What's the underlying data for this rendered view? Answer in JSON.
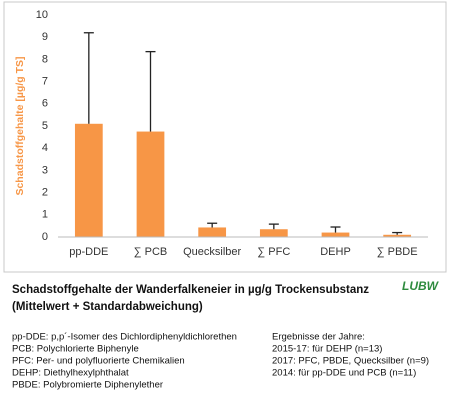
{
  "chart_data": {
    "type": "bar",
    "y_label": "Schadstoffgehalte [µg/g TS]",
    "categories": [
      "pp-DDE",
      "∑ PCB",
      "Quecksilber",
      "∑ PFC",
      "DEHP",
      "∑ PBDE"
    ],
    "values": [
      5.1,
      4.75,
      0.43,
      0.35,
      0.2,
      0.1
    ],
    "errors": [
      4.1,
      3.6,
      0.19,
      0.23,
      0.25,
      0.1
    ],
    "color": "#f79646",
    "error_color": "#222222",
    "ylim": [
      0,
      10
    ],
    "yticks": [
      0,
      1,
      2,
      3,
      4,
      5,
      6,
      7,
      8,
      9,
      10
    ],
    "grid": false
  },
  "caption": {
    "title": [
      "Schadstoffgehalte der Wanderfalkeneier in µg/g Trockensubstanz",
      "(Mittelwert + Standardabweichung)"
    ],
    "logo": "LUBW",
    "notes": [
      "pp-DDE: p,p´-Isomer des Dichlordiphenyldichlorethen",
      "PCB: Polychlorierte Biphenyle",
      "PFC: Per- und polyfluorierte Chemikalien",
      "DEHP: Diethylhexylphthalat",
      "PBDE: Polybromierte Diphenylether"
    ],
    "years": [
      "Ergebnisse der Jahre:",
      "2015-17: für DEHP (n=13)",
      "2017: PFC, PBDE, Quecksilber (n=9)",
      "2014: für pp-DDE und PCB (n=11)"
    ]
  }
}
